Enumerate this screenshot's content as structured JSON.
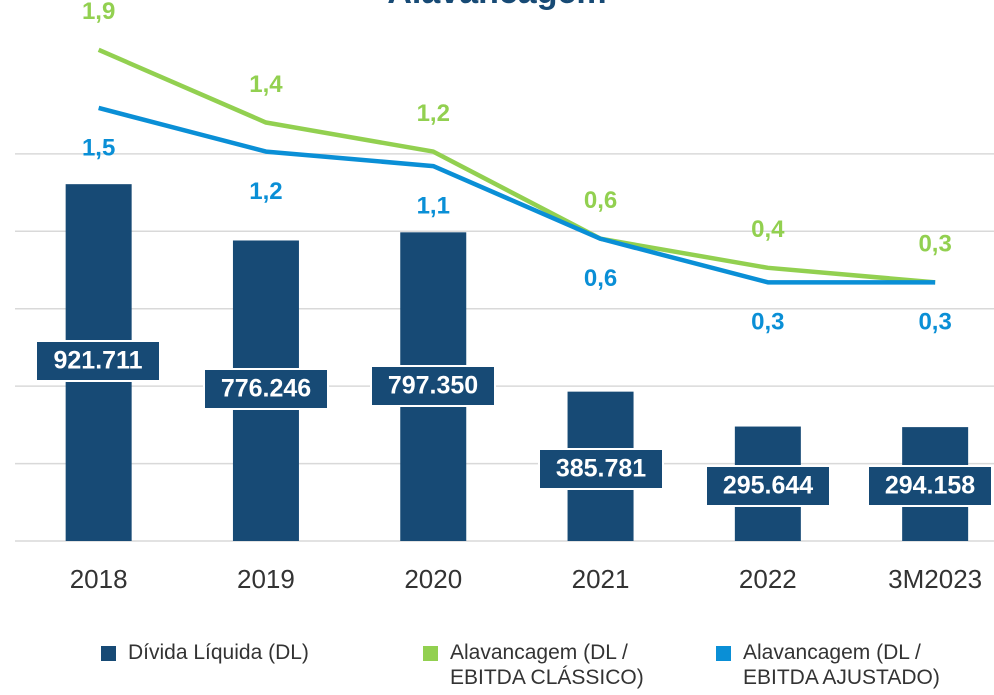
{
  "chart_data": {
    "type": "bar",
    "title": "Alavancagem",
    "categories": [
      "2018",
      "2019",
      "2020",
      "2021",
      "2022",
      "3M2023"
    ],
    "ylim": [
      0,
      1400000
    ],
    "yticks": [
      0,
      200000,
      400000,
      600000,
      800000,
      1000000
    ],
    "y2lim": [
      -1.48,
      2.25
    ],
    "grid": true,
    "series": [
      {
        "name": "Dívida Líquida (DL)",
        "color": "#174a75",
        "type": "bar",
        "values": [
          921711,
          776246,
          797350,
          385781,
          295644,
          294158
        ],
        "value_labels": [
          "921.711",
          "776.246",
          "797.350",
          "385.781",
          "295.644",
          "294.158"
        ]
      },
      {
        "name": "Alavancagem (DL / EBITDA CLÁSSICO)",
        "color": "#92d050",
        "type": "line",
        "axis": "y2",
        "values": [
          1.9,
          1.4,
          1.2,
          0.6,
          0.4,
          0.3
        ],
        "value_labels": [
          "1,9",
          "1,4",
          "1,2",
          "0,6",
          "0,4",
          "0,3"
        ]
      },
      {
        "name": "Alavancagem (DL / EBITDA AJUSTADO)",
        "color": "#0a8fd6",
        "type": "line",
        "axis": "y2",
        "values": [
          1.5,
          1.2,
          1.1,
          0.6,
          0.3,
          0.3
        ],
        "value_labels": [
          "1,5",
          "1,2",
          "1,1",
          "0,6",
          "0,3",
          "0,3"
        ]
      }
    ]
  }
}
